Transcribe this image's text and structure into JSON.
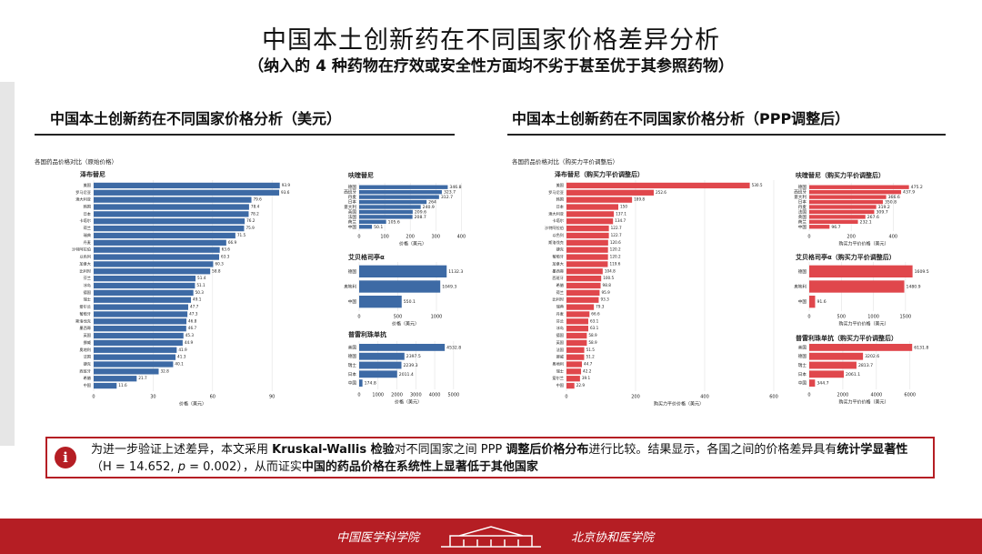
{
  "title": "中国本土创新药在不同国家价格差异分析",
  "subtitle": "（纳入的 4 种药物在疗效或安全性方面均不劣于甚至优于其参照药物）",
  "panels": [
    {
      "heading": "中国本土创新药在不同国家价格分析（美元）",
      "caption": "各国药品价格对比（原始价格）"
    },
    {
      "heading": "中国本土创新药在不同国家价格分析（PPP调整后）",
      "caption": "各国药品价格对比（购买力平价调整后）"
    }
  ],
  "chart_data": [
    {
      "type": "barh",
      "title": "泽布替尼",
      "color": "#3d6aa5",
      "xlabel": "价格（美元）",
      "categories": [
        "美国",
        "罗马尼亚",
        "澳大利亚",
        "韩国",
        "日本",
        "卡塔尔",
        "荷兰",
        "瑞典",
        "丹麦",
        "沙特阿拉伯",
        "以色列",
        "加拿大",
        "比利时",
        "芬兰",
        "冰岛",
        "德国",
        "瑞士",
        "爱尔兰",
        "葡萄牙",
        "斯洛伐克",
        "墨西哥",
        "英国",
        "挪威",
        "奥地利",
        "法国",
        "捷克",
        "西班牙",
        "希腊",
        "中国"
      ],
      "values": [
        93.9,
        93.6,
        79.6,
        78.4,
        78.2,
        76.2,
        75.9,
        71.5,
        66.9,
        63.6,
        63.3,
        60.3,
        58.8,
        51.4,
        51.1,
        50.3,
        49.1,
        47.7,
        47.3,
        46.8,
        46.7,
        45.3,
        44.9,
        41.9,
        41.3,
        40.1,
        32.8,
        21.7,
        11.6
      ],
      "xlim": [
        0,
        100
      ],
      "xticks": [
        0,
        30,
        60,
        90
      ]
    },
    {
      "type": "barh",
      "title": "呋喹替尼",
      "color": "#3d6aa5",
      "xlabel": "价格（美元）",
      "categories": [
        "德国",
        "西班牙",
        "丹麦",
        "日本",
        "意大利",
        "英国",
        "法国",
        "荷兰",
        "中国"
      ],
      "values": [
        346.8,
        323.7,
        312.7,
        264,
        240.9,
        209.6,
        208.7,
        105.6,
        50.1
      ],
      "xlim": [
        0,
        420
      ],
      "xticks": [
        0,
        100,
        200,
        300,
        400
      ]
    },
    {
      "type": "barh",
      "title": "艾贝格司亭α",
      "color": "#3d6aa5",
      "xlabel": "价格（美元）",
      "categories": [
        "德国",
        "奥地利",
        "中国"
      ],
      "values": [
        1132.3,
        1049.3,
        550.1
      ],
      "xlim": [
        0,
        1200
      ],
      "xticks": [
        0,
        500,
        1000
      ]
    },
    {
      "type": "barh",
      "title": "普雷利珠单抗",
      "color": "#3d6aa5",
      "xlabel": "价格（美元）",
      "categories": [
        "美国",
        "德国",
        "瑞士",
        "日本",
        "中国"
      ],
      "values": [
        4532.8,
        2397.5,
        2239.3,
        2011.4,
        174.8
      ],
      "xlim": [
        0,
        5200
      ],
      "xticks": [
        0,
        1000,
        2000,
        3000,
        4000,
        5000
      ]
    },
    {
      "type": "barh",
      "title": "泽布替尼（购买力平价调整后）",
      "color": "#e0474c",
      "xlabel": "购买力平价价格（美元）",
      "categories": [
        "美国",
        "罗马尼亚",
        "韩国",
        "日本",
        "澳大利亚",
        "卡塔尔",
        "沙特阿拉伯",
        "以色列",
        "斯洛伐克",
        "捷克",
        "葡萄牙",
        "加拿大",
        "墨西哥",
        "西班牙",
        "希腊",
        "荷兰",
        "比利时",
        "瑞典",
        "丹麦",
        "芬兰",
        "冰岛",
        "德国",
        "英国",
        "法国",
        "挪威",
        "奥地利",
        "瑞士",
        "爱尔兰",
        "中国"
      ],
      "values": [
        530.5,
        252.6,
        189.8,
        150,
        137.1,
        134.7,
        122.7,
        122.7,
        120.6,
        120.2,
        120.2,
        119.6,
        104.8,
        100.5,
        98.8,
        95.9,
        93.3,
        79.3,
        66.6,
        63.1,
        63.1,
        58.9,
        58.9,
        51.5,
        51.2,
        44.7,
        42.2,
        39.1,
        22.9
      ],
      "xlim": [
        0,
        650
      ],
      "xticks": [
        0,
        200,
        400,
        600
      ]
    },
    {
      "type": "barh",
      "title": "呋喹替尼（购买力平价调整后）",
      "color": "#e0474c",
      "xlabel": "购买力平价价格（美元）",
      "categories": [
        "德国",
        "西班牙",
        "意大利",
        "日本",
        "丹麦",
        "法国",
        "英国",
        "荷兰",
        "中国"
      ],
      "values": [
        475.2,
        437.9,
        366.6,
        350.8,
        319.2,
        309.7,
        267.6,
        232.1,
        96.7
      ],
      "xlim": [
        0,
        520
      ],
      "xticks": [
        0,
        200,
        400
      ]
    },
    {
      "type": "barh",
      "title": "艾贝格司亭α（购买力平价调整后）",
      "color": "#e0474c",
      "xlabel": "购买力平价价格（美元）",
      "categories": [
        "德国",
        "奥地利",
        "中国"
      ],
      "values": [
        1609.5,
        1480.9,
        91.6
      ],
      "xlim": [
        0,
        1700
      ],
      "xticks": [
        0,
        500,
        1000,
        1500
      ]
    },
    {
      "type": "barh",
      "title": "普雷利珠单抗（购买力平价调整后）",
      "color": "#e0474c",
      "xlabel": "购买力平价价格（美元）",
      "categories": [
        "美国",
        "德国",
        "瑞士",
        "日本",
        "中国"
      ],
      "values": [
        6131.8,
        3202.6,
        2813.7,
        2061.1,
        344.7
      ],
      "xlim": [
        0,
        6500
      ],
      "xticks": [
        0,
        2000,
        4000,
        6000
      ]
    }
  ],
  "note": {
    "icon": "i",
    "segments": [
      {
        "text": "为进一步验证上述差异，本文采用 "
      },
      {
        "text": "Kruskal-Wallis 检验",
        "bold": true
      },
      {
        "text": "对不同国家之间 PPP "
      },
      {
        "text": "调整后价格分布",
        "bold": true
      },
      {
        "text": "进行比较。结果显示，各国之间的价格差异具有"
      },
      {
        "text": "统计学显著性",
        "bold": true
      },
      {
        "text": "（H = 14.652, "
      },
      {
        "text": "p",
        "italic": true
      },
      {
        "text": " = 0.002），从而证实"
      },
      {
        "text": "中国的药品价格在系统性上显著低于其他国家",
        "bold": true
      }
    ]
  },
  "footer": {
    "left": "中国医学科学院",
    "right": "北京协和医学院"
  }
}
